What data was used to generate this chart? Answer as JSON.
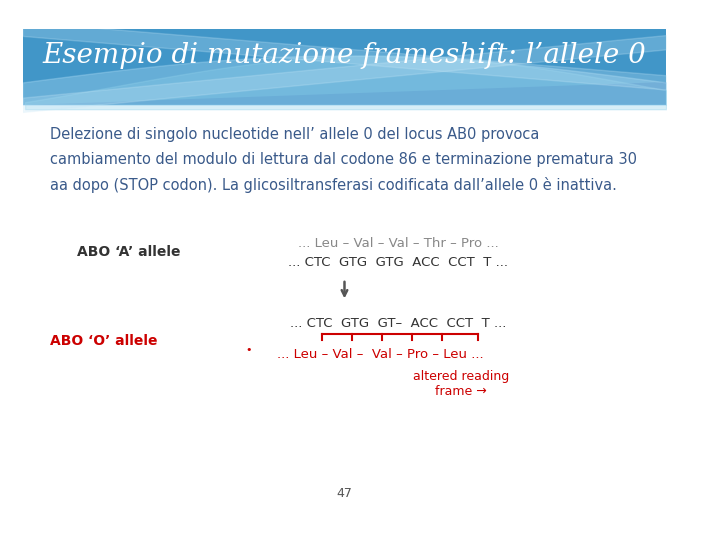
{
  "title": "Esempio di mutazione frameshift: l’allele 0",
  "bg_color": "#ffffff",
  "header_bg": "#2878b8",
  "body_text": "Delezione di singolo nucleotide nell’ allele 0 del locus AB0 provoca\ncambiamento del modulo di lettura dal codone 86 e terminazione prematura 30\naa dopo (STOP codon). La glicosiltransferasi codificata dall’allele 0 è inattiva.",
  "body_text_color": "#3a5a8a",
  "abo_a_label": "ABO ‘A’ allele",
  "abo_o_label": "ABO ‘O’ allele",
  "abo_label_color_a": "#333333",
  "abo_label_color_o": "#cc0000",
  "a_top_line": "... Leu – Val – Val – Thr – Pro ...",
  "a_bottom_line": "... CTC  GTG  GTG  ACC  CCT  T ...",
  "o_top_line": "... CTC  GTG  GT–  ACC  CCT  T ...",
  "o_bottom_line": "... Leu – Val –  Val – Pro – Leu ...",
  "altered_text": "altered reading\nframe →",
  "red_color": "#cc0000",
  "gray_color": "#888888",
  "page_number": "47",
  "wave_colors": [
    "#5aabdb",
    "#7ec8e3",
    "#a8d8ea",
    "#c5e8f5"
  ]
}
